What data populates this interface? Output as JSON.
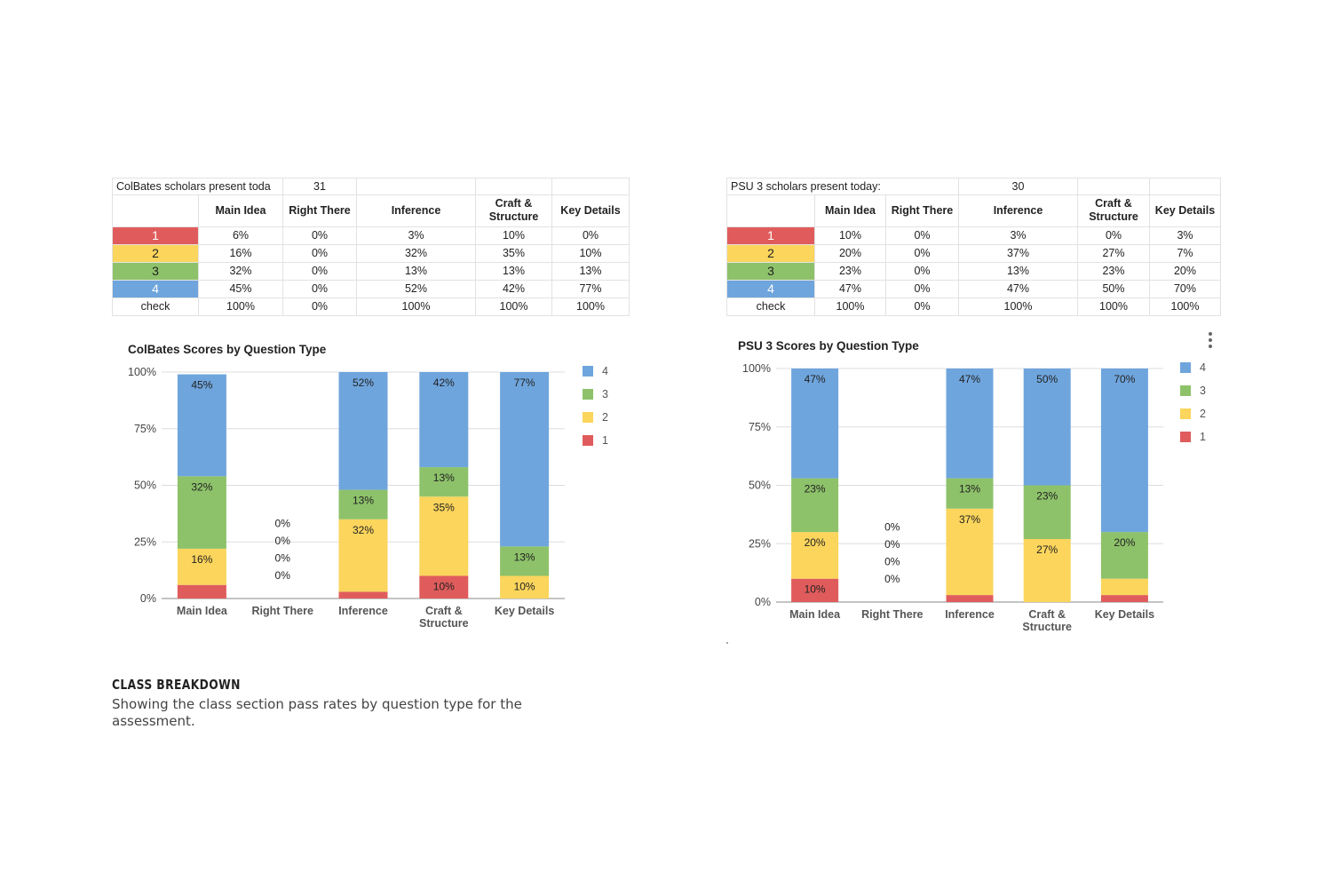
{
  "colors": {
    "1": "#e05c5c",
    "2": "#fbd55c",
    "3": "#8dc26a",
    "4": "#6fa5dd",
    "grid": "#dddddd"
  },
  "left": {
    "table": {
      "title_label": "ColBates scholars present toda",
      "title_value": "31",
      "headers": [
        "Main Idea",
        "Right There",
        "Inference",
        "Craft & Structure",
        "Key Details"
      ],
      "rows": [
        {
          "label": "1",
          "values": [
            "6%",
            "0%",
            "3%",
            "10%",
            "0%"
          ]
        },
        {
          "label": "2",
          "values": [
            "16%",
            "0%",
            "32%",
            "35%",
            "10%"
          ]
        },
        {
          "label": "3",
          "values": [
            "32%",
            "0%",
            "13%",
            "13%",
            "13%"
          ]
        },
        {
          "label": "4",
          "values": [
            "45%",
            "0%",
            "52%",
            "42%",
            "77%"
          ]
        },
        {
          "label": "check",
          "values": [
            "100%",
            "0%",
            "100%",
            "100%",
            "100%"
          ]
        }
      ]
    }
  },
  "right": {
    "table": {
      "title_label": "PSU 3 scholars present today:",
      "title_value": "30",
      "headers": [
        "Main Idea",
        "Right There",
        "Inference",
        "Craft & Structure",
        "Key Details"
      ],
      "rows": [
        {
          "label": "1",
          "values": [
            "10%",
            "0%",
            "3%",
            "0%",
            "3%"
          ]
        },
        {
          "label": "2",
          "values": [
            "20%",
            "0%",
            "37%",
            "27%",
            "7%"
          ]
        },
        {
          "label": "3",
          "values": [
            "23%",
            "0%",
            "13%",
            "23%",
            "20%"
          ]
        },
        {
          "label": "4",
          "values": [
            "47%",
            "0%",
            "47%",
            "50%",
            "70%"
          ]
        },
        {
          "label": "check",
          "values": [
            "100%",
            "0%",
            "100%",
            "100%",
            "100%"
          ]
        }
      ]
    }
  },
  "chart_data": [
    {
      "type": "bar",
      "stacked": true,
      "title": "ColBates Scores by Question Type",
      "categories": [
        "Main Idea",
        "Right There",
        "Inference",
        "Craft & Structure",
        "Key Details"
      ],
      "series": [
        {
          "name": "1",
          "values": [
            6,
            0,
            3,
            10,
            0
          ]
        },
        {
          "name": "2",
          "values": [
            16,
            0,
            32,
            35,
            10
          ]
        },
        {
          "name": "3",
          "values": [
            32,
            0,
            13,
            13,
            13
          ]
        },
        {
          "name": "4",
          "values": [
            45,
            0,
            52,
            42,
            77
          ]
        }
      ],
      "yticks": [
        "0%",
        "25%",
        "50%",
        "75%",
        "100%"
      ],
      "ylim": [
        0,
        100
      ],
      "legend": "right",
      "grid": true
    },
    {
      "type": "bar",
      "stacked": true,
      "title": "PSU 3 Scores by Question Type",
      "categories": [
        "Main Idea",
        "Right There",
        "Inference",
        "Craft & Structure",
        "Key Details"
      ],
      "series": [
        {
          "name": "1",
          "values": [
            10,
            0,
            3,
            0,
            3
          ]
        },
        {
          "name": "2",
          "values": [
            20,
            0,
            37,
            27,
            7
          ]
        },
        {
          "name": "3",
          "values": [
            23,
            0,
            13,
            23,
            20
          ]
        },
        {
          "name": "4",
          "values": [
            47,
            0,
            47,
            50,
            70
          ]
        }
      ],
      "yticks": [
        "0%",
        "25%",
        "50%",
        "75%",
        "100%"
      ],
      "ylim": [
        0,
        100
      ],
      "legend": "right",
      "grid": true
    }
  ],
  "caption": {
    "title": "CLASS BREAKDOWN",
    "text": "Showing the class section pass rates by question type for the assessment."
  },
  "icons": {
    "menu": "more-vert-icon"
  }
}
